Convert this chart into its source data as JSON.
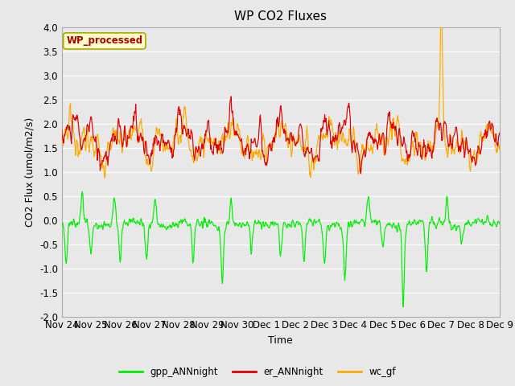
{
  "title": "WP CO2 Fluxes",
  "xlabel": "Time",
  "ylabel_str": "CO2 Flux (umol/m2/s)",
  "ylim": [
    -2.0,
    4.0
  ],
  "yticks": [
    -2.0,
    -1.5,
    -1.0,
    -0.5,
    0.0,
    0.5,
    1.0,
    1.5,
    2.0,
    2.5,
    3.0,
    3.5,
    4.0
  ],
  "xtick_labels": [
    "Nov 24",
    "Nov 25",
    "Nov 26",
    "Nov 27",
    "Nov 28",
    "Nov 29",
    "Nov 30",
    "Dec 1",
    "Dec 2",
    "Dec 3",
    "Dec 4",
    "Dec 5",
    "Dec 6",
    "Dec 7",
    "Dec 8",
    "Dec 9"
  ],
  "plot_bg_color": "#e8e8e8",
  "fig_bg_color": "#e8e8e8",
  "gpp_color": "#00ee00",
  "er_color": "#dd0000",
  "wc_color": "#ffaa00",
  "legend_entries": [
    "gpp_ANNnight",
    "er_ANNnight",
    "wc_gf"
  ],
  "wp_label": "WP_processed",
  "wp_text_color": "#aa0000",
  "wp_bg_color": "#ffffcc",
  "wp_edge_color": "#aaaa00",
  "n_points": 960,
  "seed": 42
}
